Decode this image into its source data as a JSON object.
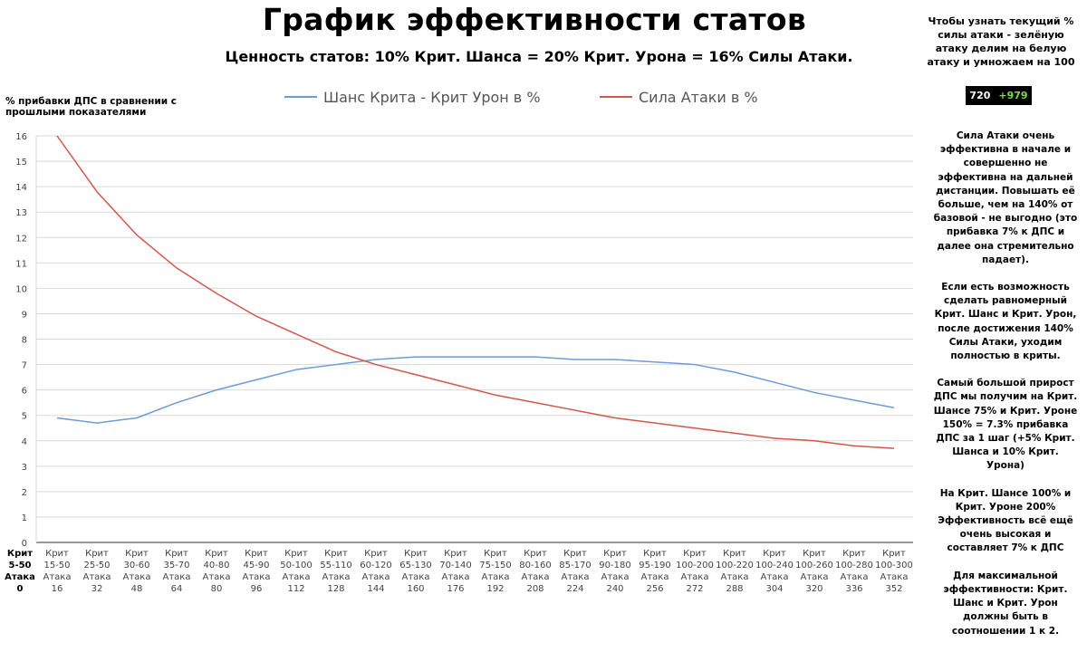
{
  "chart_data": {
    "type": "line",
    "title": "График эффективности статов",
    "subtitle": "Ценность статов: 10% Крит. Шанса = 20% Крит. Урона = 16% Силы Атаки.",
    "ylabel": "% прибавки ДПС в сравнении с прошлыми показателями",
    "xlabel": "",
    "ylim": [
      0,
      16
    ],
    "yticks": [
      "0",
      "1",
      "2",
      "3",
      "4",
      "5",
      "6",
      "7",
      "8",
      "9",
      "10",
      "11",
      "12",
      "13",
      "14",
      "15",
      "16"
    ],
    "grid": true,
    "legend_position": "top",
    "axis_header": [
      "Крит",
      "5-50",
      "Атака",
      "0"
    ],
    "categories": [
      [
        "Крит",
        "15-50",
        "Атака",
        "16"
      ],
      [
        "Крит",
        "25-50",
        "Атака",
        "32"
      ],
      [
        "Крит",
        "30-60",
        "Атака",
        "48"
      ],
      [
        "Крит",
        "35-70",
        "Атака",
        "64"
      ],
      [
        "Крит",
        "40-80",
        "Атака",
        "80"
      ],
      [
        "Крит",
        "45-90",
        "Атака",
        "96"
      ],
      [
        "Крит",
        "50-100",
        "Атака",
        "112"
      ],
      [
        "Крит",
        "55-110",
        "Атака",
        "128"
      ],
      [
        "Крит",
        "60-120",
        "Атака",
        "144"
      ],
      [
        "Крит",
        "65-130",
        "Атака",
        "160"
      ],
      [
        "Крит",
        "70-140",
        "Атака",
        "176"
      ],
      [
        "Крит",
        "75-150",
        "Атака",
        "192"
      ],
      [
        "Крит",
        "80-160",
        "Атака",
        "208"
      ],
      [
        "Крит",
        "85-170",
        "Атака",
        "224"
      ],
      [
        "Крит",
        "90-180",
        "Атака",
        "240"
      ],
      [
        "Крит",
        "95-190",
        "Атака",
        "256"
      ],
      [
        "Крит",
        "100-200",
        "Атака",
        "272"
      ],
      [
        "Крит",
        "100-220",
        "Атака",
        "288"
      ],
      [
        "Крит",
        "100-240",
        "Атака",
        "304"
      ],
      [
        "Крит",
        "100-260",
        "Атака",
        "320"
      ],
      [
        "Крит",
        "100-280",
        "Атака",
        "336"
      ],
      [
        "Крит",
        "100-300",
        "Атака",
        "352"
      ]
    ],
    "series": [
      {
        "name": "Шанс Крита - Крит Урон в %",
        "color": "#6c9bd8",
        "values": [
          4.9,
          4.7,
          4.9,
          5.5,
          6.0,
          6.4,
          6.8,
          7.0,
          7.2,
          7.3,
          7.3,
          7.3,
          7.3,
          7.2,
          7.2,
          7.1,
          7.0,
          6.7,
          6.3,
          5.9,
          5.6,
          5.3
        ]
      },
      {
        "name": "Сила Атаки в %",
        "color": "#d2574b",
        "values": [
          16.0,
          13.8,
          12.1,
          10.8,
          9.8,
          8.9,
          8.2,
          7.5,
          7.0,
          6.6,
          6.2,
          5.8,
          5.5,
          5.2,
          4.9,
          4.7,
          4.5,
          4.3,
          4.1,
          4.0,
          3.8,
          3.7
        ]
      }
    ]
  },
  "right_note": "Чтобы узнать текущий % силы атаки - зелёную атаку делим на белую атаку и умножаем на 100",
  "badge": {
    "white": "720",
    "green": "+979",
    "green_color": "#7ddc45"
  },
  "side_notes": [
    "Сила Атаки очень эффективна в начале и совершенно не эффективна на дальней дистанции. Повышать её больше, чем на 140% от базовой - не выгодно (это прибавка 7% к ДПС и далее она стремительно падает).",
    "Если есть возможность сделать равномерный Крит. Шанс и Крит. Урон, после достижения 140% Силы Атаки, уходим полностью в криты.",
    "Самый большой прирост ДПС мы получим на Крит. Шансе 75% и Крит. Уроне 150% = 7.3% прибавка ДПС за 1 шаг (+5% Крит. Шанса и 10% Крит. Урона)",
    "На Крит. Шансе 100% и Крит. Уроне 200% Эффективность всё ещё очень высокая и составляет 7% к ДПС",
    "Для максимальной эффективности: Крит. Шанс и Крит. Урон должны быть в соотношении 1 к 2."
  ]
}
